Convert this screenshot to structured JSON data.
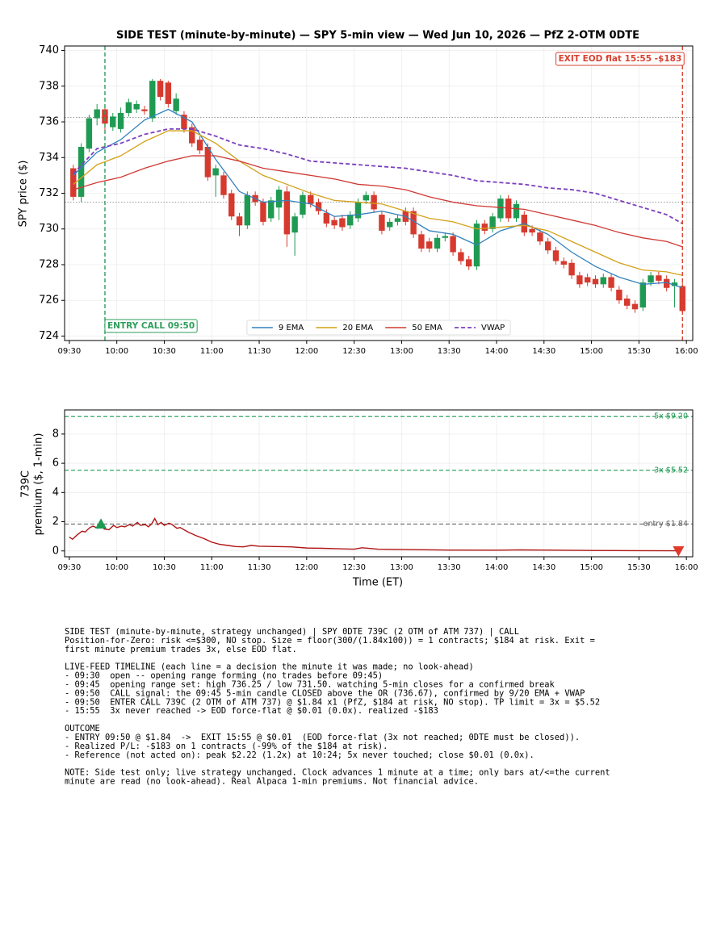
{
  "chart_data": [
    {
      "type": "candlestick",
      "title": "SIDE TEST (minute-by-minute) — SPY 5-min view — Wed Jun 10, 2026 — PfZ 2-OTM 0DTE",
      "ylabel": "SPY price ($)",
      "x": [
        "09:30",
        "09:35",
        "09:40",
        "09:45",
        "09:50",
        "09:55",
        "10:00",
        "10:05",
        "10:10",
        "10:15",
        "10:20",
        "10:25",
        "10:30",
        "10:35",
        "10:40",
        "10:45",
        "10:50",
        "10:55",
        "11:00",
        "11:05",
        "11:10",
        "11:15",
        "11:20",
        "11:25",
        "11:30",
        "11:35",
        "11:40",
        "11:45",
        "11:50",
        "11:55",
        "12:00",
        "12:05",
        "12:10",
        "12:15",
        "12:20",
        "12:25",
        "12:30",
        "12:35",
        "12:40",
        "12:45",
        "12:50",
        "12:55",
        "13:00",
        "13:05",
        "13:10",
        "13:15",
        "13:20",
        "13:25",
        "13:30",
        "13:35",
        "13:40",
        "13:45",
        "13:50",
        "13:55",
        "14:00",
        "14:05",
        "14:10",
        "14:15",
        "14:20",
        "14:25",
        "14:30",
        "14:35",
        "14:40",
        "14:45",
        "14:50",
        "14:55",
        "15:00",
        "15:05",
        "15:10",
        "15:15",
        "15:20",
        "15:25",
        "15:30",
        "15:35",
        "15:40",
        "15:45",
        "15:50",
        "15:55"
      ],
      "open": [
        733.4,
        731.8,
        734.5,
        736.2,
        736.7,
        735.7,
        735.6,
        736.5,
        736.7,
        736.7,
        736.2,
        738.3,
        738.2,
        736.6,
        736.4,
        735.7,
        735.0,
        734.6,
        733.0,
        733.0,
        732.0,
        730.7,
        730.2,
        731.9,
        731.5,
        730.6,
        731.2,
        732.1,
        729.8,
        730.8,
        731.9,
        731.5,
        730.9,
        730.5,
        730.6,
        730.2,
        730.6,
        731.6,
        731.9,
        730.8,
        730.1,
        730.4,
        731.0,
        731.0,
        729.7,
        729.3,
        728.9,
        729.5,
        729.6,
        728.7,
        728.3,
        727.9,
        730.3,
        730.0,
        730.6,
        731.7,
        730.6,
        730.8,
        730.0,
        729.8,
        729.3,
        728.8,
        728.2,
        728.1,
        727.4,
        727.3,
        727.2,
        726.9,
        727.3,
        726.6,
        726.1,
        725.8,
        725.6,
        727.0,
        727.4,
        727.2,
        726.8,
        726.8
      ],
      "high": [
        733.6,
        734.8,
        736.4,
        737.0,
        737.0,
        736.5,
        736.8,
        737.3,
        737.2,
        736.9,
        738.4,
        738.4,
        738.3,
        737.6,
        736.6,
        735.9,
        735.2,
        734.8,
        733.6,
        733.2,
        732.2,
        730.9,
        732.1,
        732.1,
        731.7,
        731.8,
        732.4,
        732.4,
        730.9,
        732.1,
        732.1,
        731.7,
        731.1,
        730.7,
        730.8,
        731.0,
        731.7,
        732.1,
        732.1,
        731.0,
        730.6,
        730.8,
        731.2,
        731.2,
        729.9,
        729.5,
        729.7,
        729.8,
        729.8,
        728.9,
        728.5,
        730.5,
        730.5,
        730.9,
        731.9,
        731.9,
        731.6,
        731.0,
        730.2,
        730.0,
        729.5,
        729.0,
        728.4,
        728.3,
        727.6,
        727.5,
        727.4,
        727.5,
        727.5,
        726.8,
        726.3,
        726.0,
        727.2,
        727.6,
        727.6,
        727.4,
        727.2,
        727.0
      ],
      "low": [
        731.6,
        731.5,
        734.3,
        735.8,
        735.5,
        735.5,
        735.4,
        736.3,
        736.5,
        736.4,
        736.0,
        737.2,
        736.8,
        736.4,
        735.4,
        734.6,
        734.2,
        732.7,
        731.8,
        731.7,
        730.5,
        729.6,
        730.0,
        731.3,
        730.2,
        730.4,
        730.5,
        729.0,
        728.5,
        730.6,
        731.2,
        730.8,
        730.1,
        730.0,
        729.9,
        730.0,
        730.4,
        731.4,
        730.9,
        729.7,
        729.9,
        730.2,
        730.2,
        729.5,
        728.7,
        728.7,
        728.7,
        729.3,
        728.5,
        728.0,
        727.7,
        727.7,
        729.7,
        729.8,
        730.4,
        730.4,
        730.4,
        729.6,
        729.6,
        729.1,
        728.6,
        728.0,
        727.8,
        727.2,
        726.7,
        726.8,
        726.7,
        726.7,
        726.5,
        725.8,
        725.5,
        725.3,
        725.4,
        726.8,
        726.9,
        726.5,
        725.6,
        725.3
      ],
      "close": [
        731.8,
        734.6,
        736.2,
        736.7,
        735.9,
        736.3,
        736.5,
        737.1,
        737.0,
        736.6,
        738.3,
        737.4,
        737.0,
        737.3,
        735.6,
        734.8,
        734.4,
        732.9,
        733.4,
        731.9,
        730.7,
        730.2,
        731.9,
        731.5,
        730.4,
        731.6,
        732.2,
        729.7,
        730.7,
        731.9,
        731.4,
        731.0,
        730.3,
        730.2,
        730.1,
        730.8,
        731.5,
        731.9,
        731.1,
        729.9,
        730.4,
        730.6,
        730.4,
        729.7,
        728.9,
        728.9,
        729.5,
        729.6,
        728.7,
        728.2,
        727.9,
        730.3,
        729.9,
        730.7,
        731.7,
        730.6,
        731.4,
        729.8,
        729.8,
        729.3,
        728.8,
        728.2,
        728.0,
        727.4,
        726.9,
        727.0,
        726.9,
        727.3,
        726.7,
        726.0,
        725.7,
        725.5,
        727.0,
        727.4,
        727.1,
        726.7,
        727.0,
        725.4
      ],
      "up_color": "#1f9a52",
      "down_color": "#d63a2f",
      "lines": {
        "x": [
          "09:30",
          "09:45",
          "10:00",
          "10:15",
          "10:30",
          "10:45",
          "11:00",
          "11:15",
          "11:30",
          "11:45",
          "12:00",
          "12:15",
          "12:30",
          "12:45",
          "13:00",
          "13:15",
          "13:30",
          "13:45",
          "14:00",
          "14:15",
          "14:30",
          "14:45",
          "15:00",
          "15:15",
          "15:30",
          "15:45",
          "15:55"
        ],
        "series": [
          {
            "name": "9 EMA",
            "color": "#3182bd",
            "dash": false,
            "values": [
              733.0,
              734.3,
              735.0,
              736.1,
              736.7,
              736.0,
              733.9,
              732.1,
              731.5,
              731.6,
              731.4,
              730.7,
              730.8,
              731.0,
              730.7,
              729.9,
              729.7,
              729.1,
              729.9,
              730.3,
              729.7,
              728.7,
              727.9,
              727.3,
              726.9,
              727.0,
              726.7
            ]
          },
          {
            "name": "20 EMA",
            "color": "#d4a017",
            "dash": false,
            "values": [
              732.5,
              733.6,
              734.1,
              734.9,
              735.5,
              735.5,
              734.8,
              733.8,
              733.0,
              732.5,
              732.0,
              731.6,
              731.5,
              731.4,
              731.0,
              730.6,
              730.4,
              730.0,
              730.1,
              730.2,
              729.9,
              729.3,
              728.7,
              728.1,
              727.7,
              727.6,
              727.4
            ]
          },
          {
            "name": "50 EMA",
            "color": "#cf3a35",
            "dash": false,
            "values": [
              732.2,
              732.6,
              732.9,
              733.4,
              733.8,
              734.1,
              734.1,
              733.8,
              733.4,
              733.2,
              733.0,
              732.8,
              732.5,
              732.4,
              732.2,
              731.8,
              731.5,
              731.3,
              731.2,
              731.1,
              730.8,
              730.5,
              730.2,
              729.8,
              729.5,
              729.3,
              729.0
            ]
          },
          {
            "name": "VWAP",
            "color": "#7b3fbf",
            "dash": true,
            "values": [
              733.1,
              734.5,
              734.8,
              735.3,
              735.6,
              735.6,
              735.2,
              734.7,
              734.5,
              734.2,
              733.8,
              733.7,
              733.6,
              733.5,
              733.4,
              733.2,
              733.0,
              732.7,
              732.6,
              732.5,
              732.3,
              732.2,
              732.0,
              731.6,
              731.2,
              730.8,
              730.3
            ]
          }
        ]
      },
      "hlines": [
        736.25,
        731.5
      ],
      "vlines": [
        {
          "x": "09:50",
          "color": "#2e9e5b",
          "label": "ENTRY CALL 09:50"
        },
        {
          "x": "15:55",
          "color": "#d9412f",
          "label": "EXIT EOD flat 15:55 -$183"
        }
      ],
      "xlim": [
        "09:27",
        "16:04"
      ],
      "xticks": [
        "09:30",
        "10:00",
        "10:30",
        "11:00",
        "11:30",
        "12:00",
        "12:30",
        "13:00",
        "13:30",
        "14:00",
        "14:30",
        "15:00",
        "15:30",
        "16:00"
      ],
      "ylim": [
        723.75,
        740.25
      ],
      "yticks": [
        724,
        726,
        728,
        730,
        732,
        734,
        736,
        738,
        740
      ],
      "grid": true,
      "legend": "lower center"
    },
    {
      "type": "line",
      "ylabel": [
        "739C",
        "premium ($, 1-min)"
      ],
      "xlabel": "Time (ET)",
      "x": [
        "09:30",
        "09:32",
        "09:35",
        "09:38",
        "09:40",
        "09:43",
        "09:45",
        "09:48",
        "09:50",
        "09:52",
        "09:55",
        "09:58",
        "10:00",
        "10:03",
        "10:05",
        "10:08",
        "10:10",
        "10:13",
        "10:15",
        "10:18",
        "10:20",
        "10:22",
        "10:24",
        "10:26",
        "10:28",
        "10:30",
        "10:33",
        "10:35",
        "10:38",
        "10:40",
        "10:45",
        "10:50",
        "10:55",
        "11:00",
        "11:05",
        "11:10",
        "11:15",
        "11:20",
        "11:25",
        "11:30",
        "11:40",
        "11:50",
        "12:00",
        "12:10",
        "12:20",
        "12:30",
        "12:35",
        "12:45",
        "13:00",
        "13:15",
        "13:30",
        "14:00",
        "14:15",
        "14:30",
        "15:00",
        "15:30",
        "15:55"
      ],
      "values": [
        0.95,
        0.8,
        1.1,
        1.35,
        1.3,
        1.6,
        1.7,
        1.55,
        1.84,
        1.5,
        1.45,
        1.75,
        1.6,
        1.7,
        1.65,
        1.8,
        1.7,
        1.95,
        1.75,
        1.8,
        1.65,
        1.85,
        2.22,
        1.8,
        1.95,
        1.75,
        1.9,
        1.8,
        1.55,
        1.6,
        1.3,
        1.05,
        0.85,
        0.6,
        0.45,
        0.38,
        0.3,
        0.28,
        0.38,
        0.32,
        0.3,
        0.28,
        0.2,
        0.18,
        0.15,
        0.12,
        0.22,
        0.12,
        0.1,
        0.08,
        0.06,
        0.05,
        0.07,
        0.06,
        0.03,
        0.02,
        0.01
      ],
      "color": "#b01515",
      "markers": [
        {
          "x": "09:50",
          "value": 1.84,
          "shape": "up",
          "color": "#1f9a52"
        },
        {
          "x": "15:55",
          "value": 0.01,
          "shape": "down",
          "color": "#e0392b"
        }
      ],
      "hlines": [
        {
          "value": 9.2,
          "label": "5x $9.20",
          "color": "#1f9a52"
        },
        {
          "value": 5.52,
          "label": "3x $5.52",
          "color": "#1f9a52"
        },
        {
          "value": 1.84,
          "label": "entry $1.84",
          "color": "#666666"
        }
      ],
      "xlim": [
        "09:27",
        "16:04"
      ],
      "xticks": [
        "09:30",
        "10:00",
        "10:30",
        "11:00",
        "11:30",
        "12:00",
        "12:30",
        "13:00",
        "13:30",
        "14:00",
        "14:30",
        "15:00",
        "15:30",
        "16:00"
      ],
      "ylim": [
        -0.4,
        9.65
      ],
      "yticks": [
        0,
        2,
        4,
        6,
        8
      ],
      "grid": true
    }
  ],
  "notes": [
    [
      "SIDE TEST (minute-by-minute, strategy unchanged) | SPY 0DTE 739C (2 OTM of ATM 737) | CALL",
      "Position-for-Zero: risk <=$300, NO stop. Size = floor(300/(1.84x100)) = 1 contracts; $184 at risk. Exit =",
      "first minute premium trades 3x, else EOD flat."
    ],
    [
      "LIVE-FEED TIMELINE (each line = a decision the minute it was made; no look-ahead)",
      "- 09:30  open -- opening range forming (no trades before 09:45)",
      "- 09:45  opening range set: high 736.25 / low 731.50. watching 5-min closes for a confirmed break",
      "- 09:50  CALL signal: the 09:45 5-min candle CLOSED above the OR (736.67), confirmed by 9/20 EMA + VWAP",
      "- 09:50  ENTER CALL 739C (2 OTM of ATM 737) @ $1.84 x1 (PfZ, $184 at risk, NO stop). TP limit = 3x = $5.52",
      "- 15:55  3x never reached -> EOD force-flat @ $0.01 (0.0x). realized -$183"
    ],
    [
      "OUTCOME",
      "- ENTRY 09:50 @ $1.84  ->  EXIT 15:55 @ $0.01  (EOD force-flat (3x not reached; 0DTE must be closed)).",
      "- Realized P/L: -$183 on 1 contracts (-99% of the $184 at risk).",
      "- Reference (not acted on): peak $2.22 (1.2x) at 10:24; 5x never touched; close $0.01 (0.0x)."
    ],
    [
      "NOTE: Side test only; live strategy unchanged. Clock advances 1 minute at a time; only bars at/<=the current",
      "minute are read (no look-ahead). Real Alpaca 1-min premiums. Not financial advice."
    ]
  ]
}
